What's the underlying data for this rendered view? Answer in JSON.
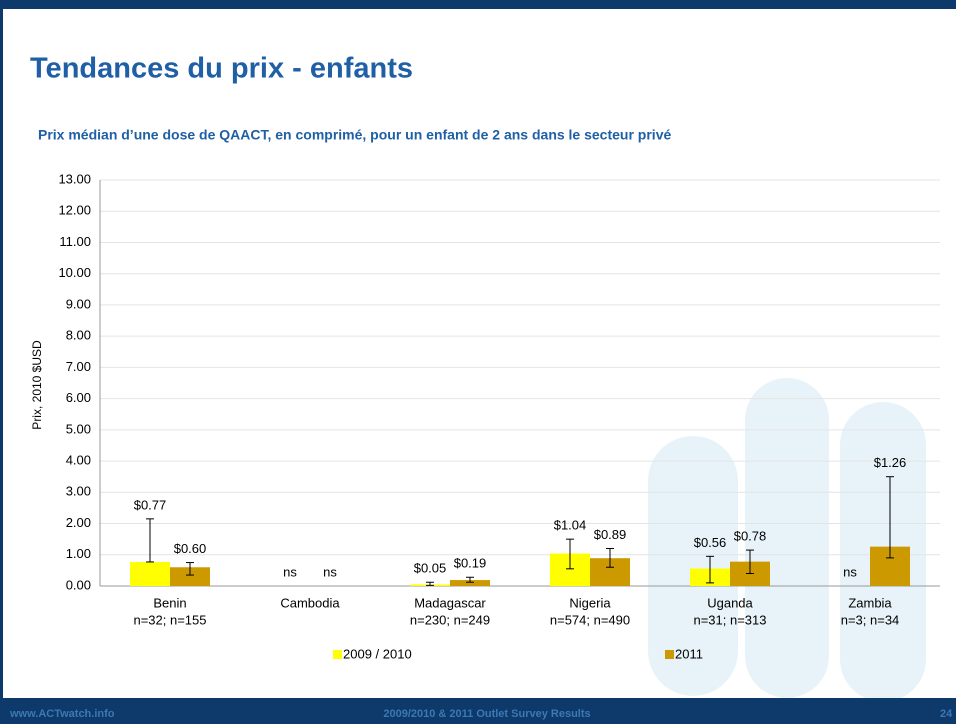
{
  "header": {
    "title": "Tendances du prix - enfants"
  },
  "footer": {
    "site": "www.ACTwatch.info",
    "center": "2009/2010 & 2011 Outlet Survey Results",
    "page": "24"
  },
  "chart_data": {
    "type": "bar",
    "title": "Prix médian d’une dose de QAACT, en comprimé, pour un enfant  de 2 ans dans le secteur privé",
    "y_label": "Prix, 2010 $USD",
    "categories": [
      "Benin",
      "Cambodia",
      "Madagascar",
      "Nigeria",
      "Uganda",
      "Zambia"
    ],
    "category_sublabels": [
      "n=32; n=155",
      null,
      "n=230; n=249",
      "n=574; n=490",
      "n=31; n=313",
      "n=3; n=34"
    ],
    "series": [
      {
        "name": "2009 / 2010",
        "color": "#ffff00",
        "values": [
          0.77,
          null,
          0.05,
          1.04,
          0.56,
          null
        ],
        "value_labels": [
          "$0.77",
          "ns",
          "$0.05",
          "$1.04",
          "$0.56",
          "ns"
        ],
        "error_low": [
          0.77,
          null,
          0.02,
          0.55,
          0.1,
          null
        ],
        "error_high": [
          2.15,
          null,
          0.12,
          1.5,
          0.95,
          null
        ]
      },
      {
        "name": "2011",
        "color": "#cc9900",
        "values": [
          0.6,
          null,
          0.19,
          0.89,
          0.78,
          1.26
        ],
        "value_labels": [
          "$0.60",
          "ns",
          "$0.19",
          "$0.89",
          "$0.78",
          "$1.26"
        ],
        "error_low": [
          0.35,
          null,
          0.12,
          0.6,
          0.4,
          0.9
        ],
        "error_high": [
          0.75,
          null,
          0.28,
          1.2,
          1.15,
          3.5
        ]
      }
    ],
    "ylim": [
      0,
      13
    ],
    "yticks": [
      {
        "value": 0,
        "label": "0.00"
      },
      {
        "value": 1,
        "label": "1.00"
      },
      {
        "value": 2,
        "label": "2.00"
      },
      {
        "value": 3,
        "label": "3.00"
      },
      {
        "value": 4,
        "label": "4.00"
      },
      {
        "value": 5,
        "label": "5.00"
      },
      {
        "value": 6,
        "label": "6.00"
      },
      {
        "value": 7,
        "label": "7.00"
      },
      {
        "value": 8,
        "label": "8.00"
      },
      {
        "value": 9,
        "label": "9.00"
      },
      {
        "value": 10,
        "label": "10.00"
      },
      {
        "value": 11,
        "label": "11.00"
      },
      {
        "value": 12,
        "label": "12.00"
      },
      {
        "value": 13,
        "label": "13.00"
      }
    ],
    "grid": true
  }
}
